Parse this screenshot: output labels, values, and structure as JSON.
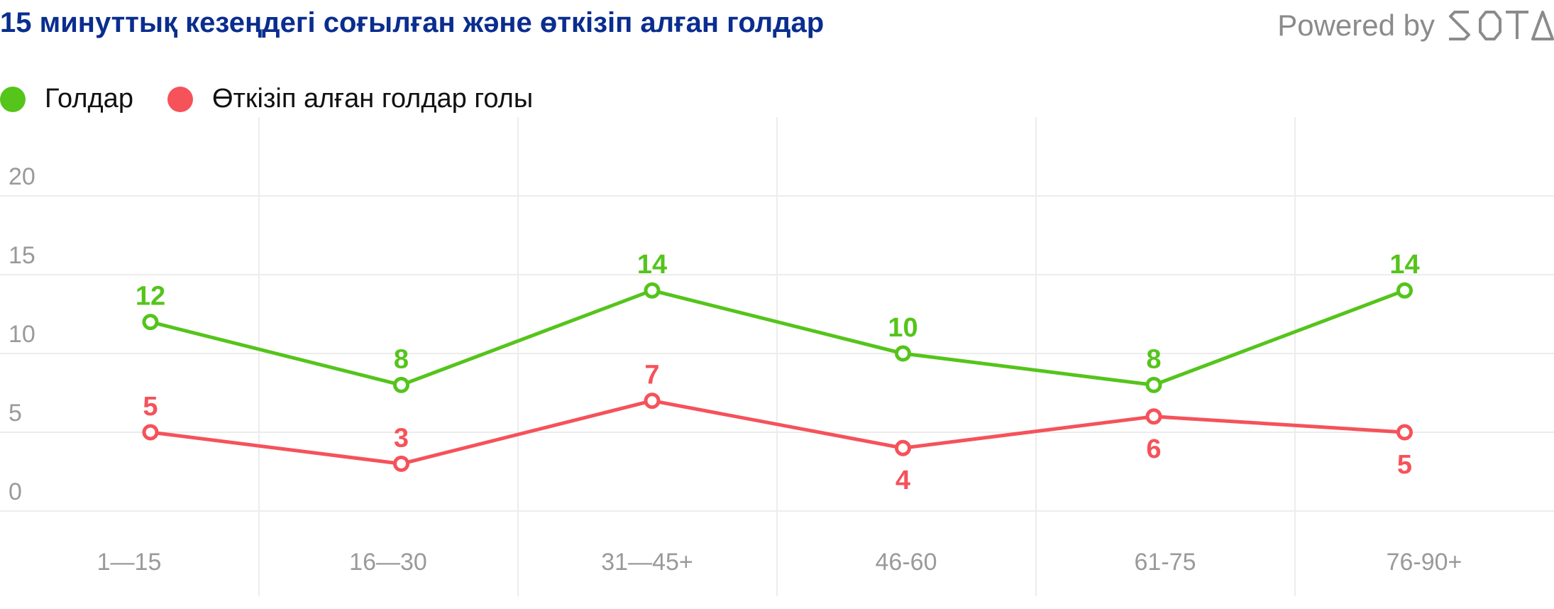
{
  "header": {
    "title": "15 минуттық кезеңдегі соғылған және өткізіп алған голдар",
    "brand_prefix": "Powered by",
    "brand_logo_text": "SOTA"
  },
  "chart_data": {
    "type": "line",
    "title": "15 минуттық кезеңдегі соғылған және өткізіп алған голдар",
    "categories": [
      "1—15",
      "16—30",
      "31—45+",
      "46-60",
      "61-75",
      "76-90+"
    ],
    "yticks": [
      0,
      5,
      10,
      15,
      20
    ],
    "ylim": [
      0,
      20
    ],
    "grid": true,
    "legend_position": "top-left",
    "series": [
      {
        "name": "Голдар",
        "color": "#55c41b",
        "values": [
          12,
          8,
          14,
          10,
          8,
          14
        ],
        "label_positions": [
          "above",
          "above",
          "above",
          "above",
          "above",
          "above"
        ]
      },
      {
        "name": "Өткізіп алған голдар голы",
        "color": "#f5525a",
        "values": [
          5,
          3,
          7,
          4,
          6,
          5
        ],
        "label_positions": [
          "above",
          "above",
          "above",
          "below",
          "below",
          "below"
        ]
      }
    ]
  }
}
